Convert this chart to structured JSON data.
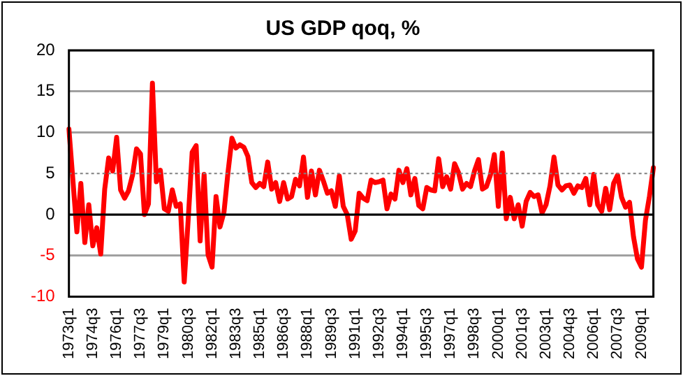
{
  "chart_data": {
    "type": "line",
    "title": "US GDP qoq, %",
    "categories": [
      "1973q1",
      null,
      null,
      null,
      null,
      null,
      "1974q3",
      null,
      null,
      null,
      null,
      null,
      "1976q1",
      null,
      null,
      null,
      null,
      null,
      "1977q3",
      null,
      null,
      null,
      null,
      null,
      "1979q1",
      null,
      null,
      null,
      null,
      null,
      "1980q3",
      null,
      null,
      null,
      null,
      null,
      "1982q1",
      null,
      null,
      null,
      null,
      null,
      "1983q3",
      null,
      null,
      null,
      null,
      null,
      "1985q1",
      null,
      null,
      null,
      null,
      null,
      "1986q3",
      null,
      null,
      null,
      null,
      null,
      "1988q1",
      null,
      null,
      null,
      null,
      null,
      "1989q3",
      null,
      null,
      null,
      null,
      null,
      "1991q1",
      null,
      null,
      null,
      null,
      null,
      "1992q3",
      null,
      null,
      null,
      null,
      null,
      "1994q1",
      null,
      null,
      null,
      null,
      null,
      "1995q3",
      null,
      null,
      null,
      null,
      null,
      "1997q1",
      null,
      null,
      null,
      null,
      null,
      "1998q3",
      null,
      null,
      null,
      null,
      null,
      "2000q1",
      null,
      null,
      null,
      null,
      null,
      "2001q3",
      null,
      null,
      null,
      null,
      null,
      "2003q1",
      null,
      null,
      null,
      null,
      null,
      "2004q3",
      null,
      null,
      null,
      null,
      null,
      "2006q1",
      null,
      null,
      null,
      null,
      null,
      "2007q3",
      null,
      null,
      null,
      null,
      null,
      "2009q1",
      null,
      null,
      null
    ],
    "series": [
      {
        "color": "#ff0000",
        "values": [
          10.4,
          4.2,
          -2.1,
          3.8,
          -3.4,
          1.2,
          -3.8,
          -1.6,
          -4.8,
          3.1,
          6.9,
          5.3,
          9.4,
          3.0,
          2.0,
          2.9,
          4.8,
          8.0,
          7.4,
          0.0,
          1.3,
          16.0,
          4.0,
          5.4,
          0.7,
          0.4,
          3.0,
          1.0,
          1.3,
          -8.2,
          -0.6,
          7.6,
          8.4,
          -3.2,
          4.9,
          -4.9,
          -6.4,
          2.2,
          -1.5,
          0.3,
          5.1,
          9.3,
          8.1,
          8.5,
          8.2,
          7.1,
          3.9,
          3.3,
          3.8,
          3.4,
          6.4,
          3.1,
          3.9,
          1.6,
          3.9,
          1.9,
          2.2,
          4.3,
          3.5,
          7.0,
          2.1,
          5.3,
          2.4,
          5.4,
          4.1,
          2.6,
          2.9,
          1.0,
          4.7,
          1.0,
          0.0,
          -3.0,
          -2.0,
          2.6,
          2.0,
          1.7,
          4.2,
          3.9,
          4.0,
          4.2,
          0.7,
          2.5,
          1.9,
          5.4,
          3.9,
          5.6,
          2.4,
          4.4,
          1.1,
          0.7,
          3.3,
          3.0,
          2.9,
          6.8,
          3.4,
          4.6,
          3.1,
          6.2,
          5.1,
          3.1,
          3.8,
          3.4,
          5.3,
          6.7,
          3.1,
          3.4,
          4.8,
          7.3,
          1.0,
          7.5,
          -0.5,
          2.1,
          -0.5,
          1.2,
          -1.4,
          1.6,
          2.7,
          2.2,
          2.4,
          0.2,
          1.2,
          3.5,
          7.0,
          3.6,
          3.0,
          3.5,
          3.6,
          2.6,
          3.5,
          3.3,
          4.4,
          1.2,
          4.9,
          1.2,
          0.4,
          3.2,
          0.6,
          3.8,
          4.8,
          2.1,
          0.9,
          1.5,
          -2.7,
          -5.4,
          -6.4,
          -0.7,
          2.2,
          5.7
        ]
      }
    ],
    "ylim": [
      -10,
      20
    ],
    "yticks": [
      -10,
      -5,
      0,
      5,
      10,
      15,
      20
    ],
    "grid": "y",
    "legend": false,
    "marker": "none",
    "line_style": "solid",
    "ref_lines": [
      {
        "axis": "y",
        "value": 5,
        "line_style": "dotted",
        "color": "#808080"
      }
    ]
  }
}
